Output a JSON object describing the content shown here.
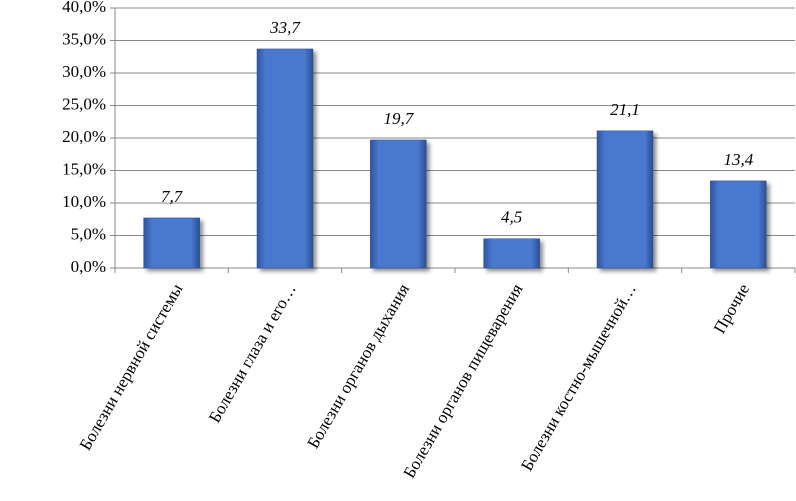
{
  "chart_data": {
    "type": "bar",
    "categories": [
      "Болезни нервной системы",
      "Болезни глаза и его…",
      "Болезни органов дыхания",
      "Болезни органов пищеварения",
      "Болезни костно-мышечной…",
      "Прочие"
    ],
    "values": [
      7.7,
      33.7,
      19.7,
      4.5,
      21.1,
      13.4
    ],
    "value_labels": [
      "7,7",
      "33,7",
      "19,7",
      "4,5",
      "21,1",
      "13,4"
    ],
    "color": "#4472c4",
    "ylim": [
      0,
      40
    ],
    "yticks": [
      {
        "value": 0,
        "label": "0,0%"
      },
      {
        "value": 5,
        "label": "5,0%"
      },
      {
        "value": 10,
        "label": "10,0%"
      },
      {
        "value": 15,
        "label": "15,0%"
      },
      {
        "value": 20,
        "label": "20,0%"
      },
      {
        "value": 25,
        "label": "25,0%"
      },
      {
        "value": 30,
        "label": "30,0%"
      },
      {
        "value": 35,
        "label": "35,0%"
      },
      {
        "value": 40,
        "label": "40,0%"
      }
    ],
    "grid": true
  }
}
